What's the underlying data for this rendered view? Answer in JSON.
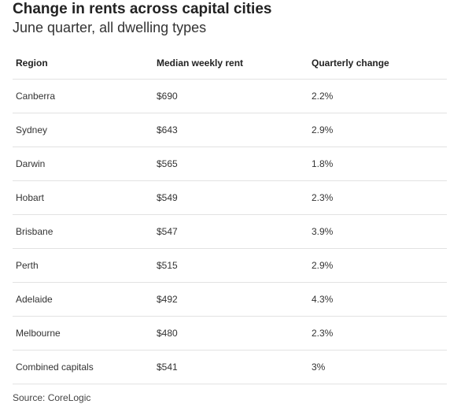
{
  "chart_data": {
    "type": "table",
    "title": "Change in rents across capital cities",
    "subtitle": "June quarter, all dwelling types",
    "columns": [
      "Region",
      "Median weekly rent",
      "Quarterly change"
    ],
    "rows": [
      [
        "Canberra",
        "$690",
        "2.2%"
      ],
      [
        "Sydney",
        "$643",
        "2.9%"
      ],
      [
        "Darwin",
        "$565",
        "1.8%"
      ],
      [
        "Hobart",
        "$549",
        "2.3%"
      ],
      [
        "Brisbane",
        "$547",
        "3.9%"
      ],
      [
        "Perth",
        "$515",
        "2.9%"
      ],
      [
        "Adelaide",
        "$492",
        "4.3%"
      ],
      [
        "Melbourne",
        "$480",
        "2.3%"
      ],
      [
        "Combined capitals",
        "$541",
        "3%"
      ]
    ],
    "source": "Source: CoreLogic"
  }
}
